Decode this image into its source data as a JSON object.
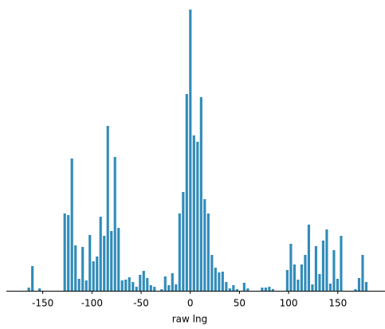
{
  "chart_data": {
    "type": "histogram",
    "xlabel": "raw lng",
    "color": "#318cb9",
    "bins": [
      -166,
      -162.35,
      -158.7,
      -155.05,
      -151.4,
      -147.75,
      -144.1,
      -140.45,
      -136.8,
      -133.15,
      -129.5,
      -125.85,
      -122.2,
      -118.55,
      -114.9,
      -111.25,
      -107.6,
      -103.95,
      -100.3,
      -96.65,
      -93,
      -89.35,
      -85.7,
      -82.05,
      -78.4,
      -74.75,
      -71.1,
      -67.45,
      -63.8,
      -60.15,
      -56.5,
      -52.85,
      -49.2,
      -45.55,
      -41.9,
      -38.25,
      -34.6,
      -30.95,
      -27.3,
      -23.65,
      -20,
      -16.35,
      -12.7,
      -9.05,
      -5.4,
      -1.75,
      1.9,
      5.55,
      9.2,
      12.85,
      16.5,
      20.15,
      23.8,
      27.45,
      31.1,
      34.75,
      38.4,
      42.05,
      45.7,
      49.35,
      53,
      56.65,
      60.3,
      63.95,
      67.6,
      71.25,
      74.9,
      78.55,
      82.2,
      85.85,
      89.5,
      93.15,
      96.8,
      100.45,
      104.1,
      107.75,
      111.4,
      115.05,
      118.7,
      122.35,
      126,
      129.65,
      133.3,
      136.95,
      140.6,
      144.25,
      147.9,
      151.55,
      155.2,
      158.85,
      162.5,
      166.15,
      169.8,
      173.45,
      177.1,
      180.75
    ],
    "values": [
      4,
      31,
      0,
      3,
      0,
      0,
      0,
      0,
      0,
      0,
      97,
      95,
      166,
      57,
      15,
      55,
      13,
      70,
      37,
      43,
      93,
      69,
      207,
      75,
      168,
      79,
      13,
      14,
      17,
      11,
      5,
      20,
      25,
      16,
      7,
      5,
      0,
      2,
      18,
      7,
      22,
      8,
      97,
      124,
      247,
      353,
      195,
      187,
      243,
      115,
      97,
      45,
      29,
      23,
      24,
      11,
      3,
      7,
      2,
      0,
      10,
      3,
      0,
      0,
      0,
      4,
      4,
      5,
      2,
      0,
      0,
      0,
      26,
      59,
      33,
      14,
      33,
      45,
      83,
      8,
      56,
      21,
      63,
      77,
      9,
      51,
      15,
      69,
      0,
      0,
      0,
      2,
      16,
      45,
      11
    ],
    "xlim": [
      -187,
      198
    ],
    "xticks": [
      -150,
      -100,
      -50,
      0,
      50,
      100,
      150
    ],
    "ylim": [
      0,
      353
    ]
  }
}
